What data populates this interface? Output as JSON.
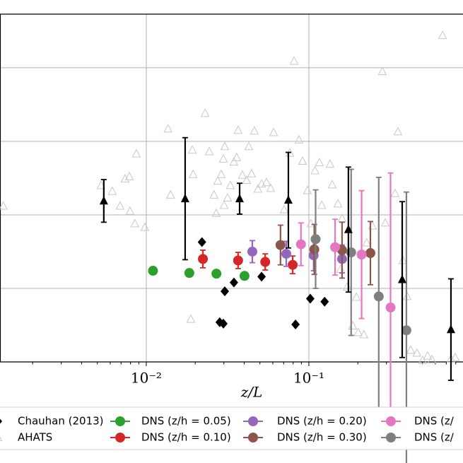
{
  "chart_data": {
    "type": "scatter",
    "xlabel": "z/L",
    "xscale": "log",
    "xlim": [
      0.00126,
      0.887
    ],
    "ylim": [
      0,
      4.73
    ],
    "grid": true,
    "xticks": [
      {
        "value": 0.01,
        "label": "10⁻²"
      },
      {
        "value": 0.1,
        "label": "10⁻¹"
      }
    ],
    "xminorticks": [
      0.002,
      0.003,
      0.004,
      0.005,
      0.006,
      0.007,
      0.008,
      0.009,
      0.02,
      0.03,
      0.04,
      0.05,
      0.06,
      0.07,
      0.08,
      0.09,
      0.2,
      0.3,
      0.4,
      0.5,
      0.6,
      0.7,
      0.8
    ],
    "ygrid": [
      1,
      2,
      3,
      4
    ],
    "legend": "bottom",
    "series": [
      {
        "name": "Chauhan (2013)",
        "color": "#000000",
        "marker": "diamond",
        "x": [
          0.022,
          0.0304,
          0.0346,
          0.0283,
          0.0298,
          0.0512,
          0.0828,
          0.102,
          0.125
        ],
        "values": [
          1.63,
          0.96,
          1.08,
          0.54,
          0.52,
          1.16,
          0.51,
          0.86,
          0.82
        ]
      },
      {
        "name": "AHATS",
        "color": "#c8c8c8",
        "marker": "open-triangle",
        "x": [
          0.00132,
          0.00527,
          0.00618,
          0.0069,
          0.00741,
          0.00787,
          0.00794,
          0.00851,
          0.00869,
          0.0098,
          0.0136,
          0.0141,
          0.0188,
          0.0192,
          0.0194,
          0.023,
          0.0244,
          0.0261,
          0.0269,
          0.0275,
          0.0289,
          0.0298,
          0.0304,
          0.0301,
          0.0316,
          0.0329,
          0.0346,
          0.036,
          0.0367,
          0.039,
          0.0414,
          0.0427,
          0.0444,
          0.0462,
          0.0486,
          0.0512,
          0.0548,
          0.0582,
          0.0607,
          0.0705,
          0.0764,
          0.0811,
          0.0869,
          0.0914,
          0.098,
          0.103,
          0.109,
          0.116,
          0.12,
          0.135,
          0.139,
          0.151,
          0.157,
          0.16,
          0.172,
          0.186,
          0.196,
          0.201,
          0.218,
          0.227,
          0.246,
          0.283,
          0.295,
          0.339,
          0.353,
          0.378,
          0.402,
          0.423,
          0.462,
          0.501,
          0.537,
          0.571,
          0.664,
          0.748,
          0.794
        ],
        "values": [
          2.12,
          2.4,
          2.32,
          2.12,
          2.49,
          2.52,
          2.05,
          1.88,
          2.83,
          1.83,
          3.17,
          2.27,
          0.58,
          2.88,
          2.55,
          3.38,
          2.86,
          2.27,
          2.02,
          2.46,
          2.55,
          2.76,
          2.93,
          2.13,
          2.23,
          2.4,
          2.72,
          2.78,
          3.15,
          2.54,
          2.47,
          2.93,
          2.56,
          3.14,
          2.35,
          2.42,
          2.44,
          2.36,
          3.12,
          2.07,
          2.84,
          4.09,
          3.02,
          2.73,
          2.33,
          1.88,
          2.6,
          2.71,
          2.13,
          2.69,
          2.41,
          2.15,
          1.26,
          1.95,
          1.02,
          0.49,
          0.88,
          0.4,
          0.37,
          1.62,
          1.85,
          3.95,
          1.89,
          2.29,
          3.13,
          1.38,
          0.89,
          0.16,
          0.12,
          0.02,
          0.08,
          0.03,
          4.44,
          0.04,
          0.06
        ]
      },
      {
        "name": "DNS (z/h = 0.05)",
        "color": "#2ca02c",
        "marker": "circle",
        "x": [
          0.011,
          0.0184,
          0.027,
          0.0402
        ],
        "values": [
          1.24,
          1.21,
          1.2,
          1.17
        ]
      },
      {
        "name": "DNS (z/h = 0.10)",
        "color": "#d62728",
        "marker": "circle",
        "x": [
          0.0223,
          0.0367,
          0.0539,
          0.0795
        ],
        "values": [
          1.4,
          1.38,
          1.36,
          1.32
        ],
        "errors": [
          0.12,
          0.11,
          0.11,
          0.12
        ]
      },
      {
        "name": "DNS (z/h = 0.20)",
        "color": "#9467bd",
        "marker": "circle",
        "x": [
          0.0449,
          0.0726,
          0.107,
          0.16
        ],
        "values": [
          1.5,
          1.47,
          1.45,
          1.4
        ],
        "errors": [
          0.15,
          0.17,
          0.21,
          0.19
        ]
      },
      {
        "name": "DNS (z/h = 0.30)",
        "color": "#8c564b",
        "marker": "circle",
        "x": [
          0.0669,
          0.108,
          0.16,
          0.239
        ],
        "values": [
          1.59,
          1.53,
          1.52,
          1.48
        ],
        "errors": [
          0.27,
          0.34,
          0.38,
          0.43
        ]
      },
      {
        "name": "DNS (z/",
        "color": "#e377c2",
        "marker": "circle",
        "x": [
          0.0894,
          0.145,
          0.211,
          0.318
        ],
        "values": [
          1.6,
          1.56,
          1.46,
          0.74
        ],
        "errors": [
          0.29,
          0.38,
          0.87,
          1.83
        ]
      },
      {
        "name": "DNS (z/",
        "color": "#7f7f7f",
        "marker": "circle",
        "x": [
          0.11,
          0.182,
          0.269,
          0.398
        ],
        "values": [
          1.67,
          1.49,
          0.89,
          0.43
        ],
        "errors": [
          0.67,
          1.13,
          1.62,
          1.88
        ]
      },
      {
        "color": "#000000",
        "marker": "triangle",
        "x": [
          0.00548,
          0.01734,
          0.0375,
          0.0748,
          0.175,
          0.375,
          0.748
        ],
        "values": [
          2.19,
          2.22,
          2.22,
          2.2,
          1.8,
          1.12,
          0.44
        ],
        "errors": [
          0.29,
          0.83,
          0.21,
          0.65,
          0.85,
          1.06,
          0.69
        ]
      }
    ]
  }
}
